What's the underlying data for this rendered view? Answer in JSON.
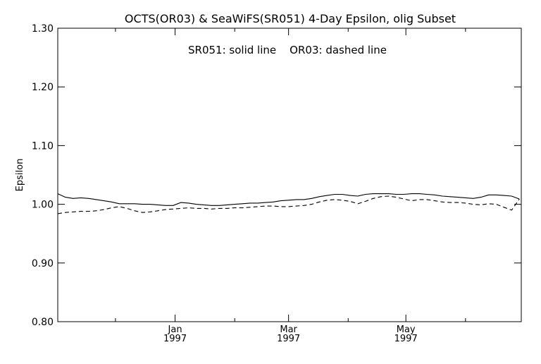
{
  "chart_data": {
    "type": "line",
    "title": "OCTS(OR03) & SeaWiFS(SR051) 4-Day Epsilon, olig Subset",
    "annotation": "SR051: solid line    OR03: dashed line",
    "xlabel": "",
    "ylabel": "Epsilon",
    "ylim": [
      0.8,
      1.3
    ],
    "yticks": [
      0.8,
      0.9,
      1.0,
      1.1,
      1.2,
      1.3
    ],
    "ytick_labels": [
      "0.80",
      "0.90",
      "1.00",
      "1.10",
      "1.20",
      "1.30"
    ],
    "xlim": [
      "1996-11-01",
      "1997-06-30"
    ],
    "xticks": [
      {
        "date": "1997-01-01",
        "month": "Jan",
        "year": "1997"
      },
      {
        "date": "1997-03-01",
        "month": "Mar",
        "year": "1997"
      },
      {
        "date": "1997-05-01",
        "month": "May",
        "year": "1997"
      }
    ],
    "minor_xticks": [
      "1996-12-01",
      "1997-02-01",
      "1997-04-01",
      "1997-06-01"
    ],
    "grid": false,
    "series": [
      {
        "name": "SR051",
        "line_style": "solid",
        "color": "#000000",
        "x": [
          "1996-11-01",
          "1996-11-05",
          "1996-11-09",
          "1996-11-13",
          "1996-11-17",
          "1996-11-21",
          "1996-11-25",
          "1996-11-29",
          "1996-12-03",
          "1996-12-07",
          "1996-12-11",
          "1996-12-15",
          "1996-12-19",
          "1996-12-23",
          "1996-12-27",
          "1996-12-31",
          "1997-01-04",
          "1997-01-08",
          "1997-01-12",
          "1997-01-16",
          "1997-01-20",
          "1997-01-24",
          "1997-01-28",
          "1997-02-01",
          "1997-02-05",
          "1997-02-09",
          "1997-02-13",
          "1997-02-17",
          "1997-02-21",
          "1997-02-25",
          "1997-03-01",
          "1997-03-05",
          "1997-03-09",
          "1997-03-13",
          "1997-03-17",
          "1997-03-21",
          "1997-03-25",
          "1997-03-29",
          "1997-04-02",
          "1997-04-06",
          "1997-04-10",
          "1997-04-14",
          "1997-04-18",
          "1997-04-22",
          "1997-04-26",
          "1997-04-30",
          "1997-05-04",
          "1997-05-08",
          "1997-05-12",
          "1997-05-16",
          "1997-05-20",
          "1997-05-24",
          "1997-05-28",
          "1997-06-01",
          "1997-06-05",
          "1997-06-09",
          "1997-06-13",
          "1997-06-17",
          "1997-06-21",
          "1997-06-25",
          "1997-06-29"
        ],
        "values": [
          1.018,
          1.012,
          1.01,
          1.011,
          1.01,
          1.008,
          1.006,
          1.004,
          1.001,
          1.001,
          1.001,
          1.0,
          1.0,
          0.999,
          0.998,
          0.998,
          1.003,
          1.002,
          1.0,
          0.999,
          0.998,
          0.998,
          0.999,
          1.0,
          1.001,
          1.002,
          1.002,
          1.003,
          1.004,
          1.006,
          1.007,
          1.008,
          1.008,
          1.01,
          1.013,
          1.015,
          1.017,
          1.017,
          1.015,
          1.014,
          1.017,
          1.018,
          1.018,
          1.018,
          1.017,
          1.017,
          1.018,
          1.018,
          1.017,
          1.016,
          1.014,
          1.013,
          1.012,
          1.011,
          1.01,
          1.012,
          1.016,
          1.016,
          1.015,
          1.014,
          1.009
        ]
      },
      {
        "name": "OR03",
        "line_style": "dashed",
        "color": "#000000",
        "x": [
          "1996-11-01",
          "1996-11-05",
          "1996-11-09",
          "1996-11-13",
          "1996-11-17",
          "1996-11-21",
          "1996-11-25",
          "1996-11-29",
          "1996-12-03",
          "1996-12-07",
          "1996-12-11",
          "1996-12-15",
          "1996-12-19",
          "1996-12-23",
          "1996-12-27",
          "1996-12-31",
          "1997-01-04",
          "1997-01-08",
          "1997-01-12",
          "1997-01-16",
          "1997-01-20",
          "1997-01-24",
          "1997-01-28",
          "1997-02-01",
          "1997-02-05",
          "1997-02-09",
          "1997-02-13",
          "1997-02-17",
          "1997-02-21",
          "1997-02-25",
          "1997-03-01",
          "1997-03-05",
          "1997-03-09",
          "1997-03-13",
          "1997-03-17",
          "1997-03-21",
          "1997-03-25",
          "1997-03-29",
          "1997-04-02",
          "1997-04-06",
          "1997-04-10",
          "1997-04-14",
          "1997-04-18",
          "1997-04-22",
          "1997-04-26",
          "1997-04-30",
          "1997-05-04",
          "1997-05-08",
          "1997-05-12",
          "1997-05-16",
          "1997-05-20",
          "1997-05-24",
          "1997-05-28",
          "1997-06-01",
          "1997-06-05",
          "1997-06-09",
          "1997-06-13",
          "1997-06-17",
          "1997-06-21",
          "1997-06-25",
          "1997-06-29"
        ],
        "values": [
          0.984,
          0.986,
          0.987,
          0.988,
          0.988,
          0.989,
          0.991,
          0.994,
          0.996,
          0.993,
          0.989,
          0.986,
          0.987,
          0.989,
          0.991,
          0.992,
          0.993,
          0.994,
          0.993,
          0.993,
          0.992,
          0.993,
          0.993,
          0.994,
          0.994,
          0.995,
          0.996,
          0.997,
          0.997,
          0.996,
          0.996,
          0.997,
          0.998,
          1.0,
          1.004,
          1.007,
          1.008,
          1.007,
          1.005,
          1.001,
          1.005,
          1.01,
          1.013,
          1.014,
          1.012,
          1.009,
          1.006,
          1.008,
          1.008,
          1.006,
          1.004,
          1.003,
          1.003,
          1.002,
          1.0,
          0.999,
          1.001,
          1.0,
          0.995,
          0.99,
          1.009
        ]
      }
    ]
  }
}
